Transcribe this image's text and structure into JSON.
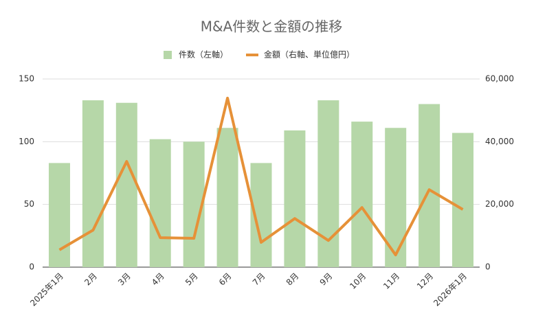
{
  "chart_data": {
    "type": "bar-line",
    "title": "M&A件数と金額の推移",
    "categories": [
      "2025年1月",
      "2月",
      "3月",
      "4月",
      "5月",
      "6月",
      "7月",
      "8月",
      "9月",
      "10月",
      "11月",
      "12月",
      "2026年1月"
    ],
    "series": [
      {
        "name": "件数（左軸）",
        "type": "bar",
        "color": "#b6d7a8",
        "values": [
          83,
          133,
          131,
          102,
          100,
          111,
          83,
          109,
          133,
          116,
          111,
          130,
          107
        ]
      },
      {
        "name": "金額（右軸、単位億円）",
        "type": "line",
        "axis": "y2",
        "color": "#e69138",
        "values": [
          5500,
          11800,
          33700,
          9400,
          9200,
          53900,
          7900,
          15500,
          8500,
          19000,
          3900,
          24700,
          18400
        ]
      }
    ],
    "ylim": [
      0,
      150
    ],
    "yticks": [
      0,
      50,
      100,
      150
    ],
    "y2lim": [
      0,
      60000
    ],
    "y2ticks": [
      0,
      {
        "value": 20000,
        "label": "20,000"
      },
      {
        "value": 40000,
        "label": "40,000"
      },
      {
        "value": 60000,
        "label": "60,000"
      }
    ],
    "grid": true,
    "legend": "top"
  }
}
